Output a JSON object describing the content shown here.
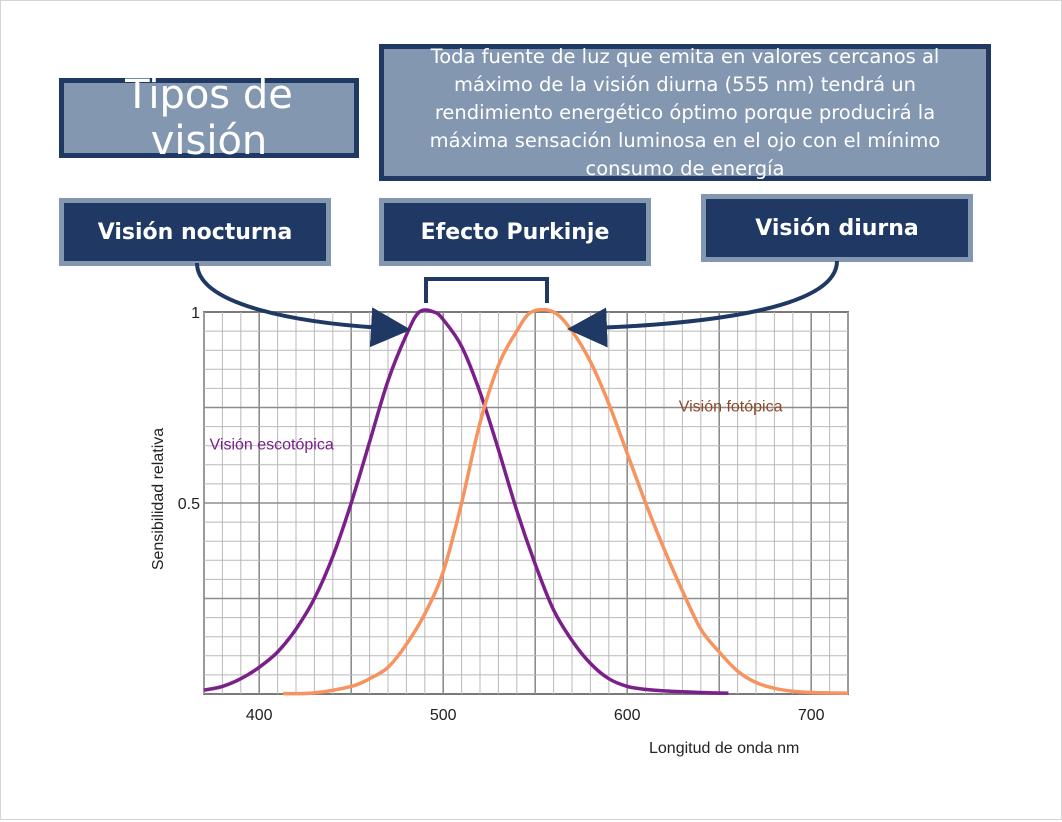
{
  "slide": {
    "title": "Tipos de visión",
    "note": "Toda fuente de luz que emita en valores cercanos al máximo de la visión diurna (555 nm) tendrá un rendimiento energético óptimo porque producirá la máxima sensación luminosa en el ojo con el mínimo consumo de energía",
    "labels": {
      "night": "Visión nocturna",
      "purkinje": "Efecto Purkinje",
      "day": "Visión diurna"
    }
  },
  "colors": {
    "navy": "#1f3864",
    "slate": "#8497b0",
    "scotopic": "#7b1f8a",
    "photopic": "#f7935f"
  },
  "chart_data": {
    "type": "line",
    "xlabel": "Longitud de onda   nm",
    "ylabel": "Sensibilidad relativa",
    "xlim": [
      370,
      720
    ],
    "ylim": [
      0,
      1
    ],
    "x_ticks": [
      400,
      500,
      600,
      700
    ],
    "y_ticks": [
      {
        "value": 1,
        "label": "1"
      },
      {
        "value": 0.5,
        "label": "0.5"
      }
    ],
    "grid": true,
    "series": [
      {
        "name": "Visión escotópica",
        "color": "#7b1f8a",
        "label_at": {
          "x": 373,
          "y": 0.64
        },
        "points": [
          [
            370,
            0.01
          ],
          [
            380,
            0.02
          ],
          [
            390,
            0.04
          ],
          [
            400,
            0.07
          ],
          [
            410,
            0.11
          ],
          [
            420,
            0.17
          ],
          [
            430,
            0.25
          ],
          [
            440,
            0.36
          ],
          [
            450,
            0.5
          ],
          [
            460,
            0.66
          ],
          [
            470,
            0.82
          ],
          [
            480,
            0.94
          ],
          [
            487,
            1.0
          ],
          [
            495,
            1.0
          ],
          [
            500,
            0.98
          ],
          [
            510,
            0.91
          ],
          [
            520,
            0.79
          ],
          [
            530,
            0.64
          ],
          [
            540,
            0.48
          ],
          [
            550,
            0.34
          ],
          [
            560,
            0.22
          ],
          [
            570,
            0.14
          ],
          [
            580,
            0.08
          ],
          [
            590,
            0.04
          ],
          [
            600,
            0.02
          ],
          [
            610,
            0.012
          ],
          [
            620,
            0.008
          ],
          [
            640,
            0.004
          ],
          [
            655,
            0.002
          ]
        ]
      },
      {
        "name": "Visión fotópica",
        "color": "#f7935f",
        "label_at": {
          "x": 628,
          "y": 0.74
        },
        "points": [
          [
            413,
            0.001
          ],
          [
            430,
            0.003
          ],
          [
            450,
            0.02
          ],
          [
            460,
            0.04
          ],
          [
            470,
            0.07
          ],
          [
            480,
            0.13
          ],
          [
            490,
            0.21
          ],
          [
            500,
            0.32
          ],
          [
            510,
            0.5
          ],
          [
            520,
            0.71
          ],
          [
            530,
            0.86
          ],
          [
            540,
            0.95
          ],
          [
            548,
            1.0
          ],
          [
            560,
            1.0
          ],
          [
            570,
            0.95
          ],
          [
            580,
            0.87
          ],
          [
            590,
            0.76
          ],
          [
            600,
            0.63
          ],
          [
            610,
            0.5
          ],
          [
            620,
            0.38
          ],
          [
            630,
            0.27
          ],
          [
            640,
            0.17
          ],
          [
            650,
            0.11
          ],
          [
            660,
            0.06
          ],
          [
            670,
            0.03
          ],
          [
            680,
            0.015
          ],
          [
            690,
            0.007
          ],
          [
            700,
            0.004
          ],
          [
            720,
            0.002
          ]
        ]
      }
    ]
  }
}
